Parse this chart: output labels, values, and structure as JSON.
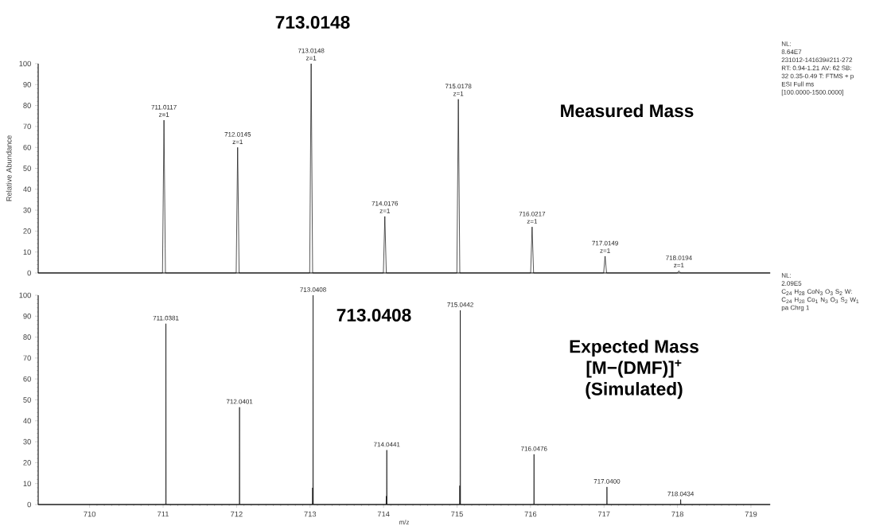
{
  "chart_data": [
    {
      "type": "line",
      "title": "713.0148",
      "ylabel": "Relative Abundance",
      "color": "#000000",
      "x": [
        709.3,
        710.9917,
        711.0117,
        711.0317,
        711.9945,
        712.0145,
        712.0345,
        712.9948,
        713.0148,
        713.0348,
        713.9976,
        714.0176,
        714.0376,
        714.9978,
        715.0178,
        715.0378,
        716.0017,
        716.0217,
        716.0417,
        716.9949,
        717.0149,
        717.0349,
        717.9994,
        718.0194,
        718.0394,
        719.26
      ],
      "values": [
        0,
        0,
        73,
        0,
        0,
        60,
        0,
        0,
        100,
        0,
        0,
        27,
        0,
        0,
        83,
        0,
        0,
        22,
        0,
        0,
        8,
        0,
        0,
        1,
        0,
        0
      ],
      "xlim": [
        709.3,
        719.26
      ],
      "ylim": [
        0,
        100
      ],
      "yticks": [
        0,
        10,
        20,
        30,
        40,
        50,
        60,
        70,
        80,
        90,
        100
      ],
      "tick_labels": "y",
      "annotations": [
        "Measured Mass",
        "NL:",
        "8.64E7",
        "231012-141639#211-272",
        "RT: 0.94-1.21  AV: 62 SB:",
        "32  0.35-0.49 T: FTMS + p",
        "ESI Full ms",
        "[100.0000-1500.0000]",
        {
          "text": "711.0117 z=1",
          "x": 711.0117,
          "y": 73
        },
        {
          "text": "712.0145 z=1",
          "x": 712.0145,
          "y": 60
        },
        {
          "text": "713.0148 z=1",
          "x": 713.0148,
          "y": 100
        },
        {
          "text": "714.0176 z=1",
          "x": 714.0176,
          "y": 27
        },
        {
          "text": "715.0178 z=1",
          "x": 715.0178,
          "y": 83
        },
        {
          "text": "716.0217 z=1",
          "x": 716.0217,
          "y": 22
        },
        {
          "text": "717.0149 z=1",
          "x": 717.0149,
          "y": 8
        },
        {
          "text": "718.0194 z=1",
          "x": 718.0194,
          "y": 1
        }
      ]
    },
    {
      "type": "line",
      "xlabel": "m/z",
      "color": "#000000",
      "x": [
        709.3,
        711.0351,
        711.0381,
        711.0411,
        712.0371,
        712.0401,
        712.0431,
        713.0315,
        713.0345,
        713.0375,
        713.0378,
        713.0408,
        713.0438,
        714.0345,
        714.0375,
        714.0405,
        714.0411,
        714.0441,
        714.0471,
        715.0345,
        715.0375,
        715.0405,
        715.0412,
        715.0442,
        715.0472,
        716.0446,
        716.0476,
        716.0506,
        717.037,
        717.04,
        717.043,
        718.0404,
        718.0434,
        718.0464,
        719.26
      ],
      "values": [
        0,
        0,
        86.4,
        0,
        0,
        46.5,
        0,
        0,
        8,
        0,
        0,
        100,
        0,
        0,
        4,
        0,
        0,
        26,
        0,
        0,
        9,
        0,
        0,
        92.8,
        0,
        0,
        24,
        0,
        0,
        8.4,
        0,
        0,
        2.4,
        0,
        0
      ],
      "xlim": [
        709.3,
        719.26
      ],
      "ylim": [
        0,
        100
      ],
      "xticks": [
        710,
        711,
        712,
        713,
        714,
        715,
        716,
        717,
        718,
        719
      ],
      "yticks": [
        0,
        10,
        20,
        30,
        40,
        50,
        60,
        70,
        80,
        90,
        100
      ],
      "annotations": [
        "713.0408",
        "Expected Mass",
        "[M−(DMF)]$^{+}$",
        "(Simulated)",
        "NL:",
        "2.09E5",
        "C$_{24}$ H$_{28}$ CoN$_{3}$ O$_{3}$ S$_{2}$ W:",
        "C$_{24}$ H$_{28}$ Co$_{1}$ N$_{3}$ O$_{3}$ S$_{2}$ W$_{1}$",
        "pa Chrg 1",
        {
          "text": "711.0381",
          "x": 711.0381,
          "y": 86.4
        },
        {
          "text": "712.0401",
          "x": 712.0401,
          "y": 46.5
        },
        {
          "text": "713.0408",
          "x": 713.0408,
          "y": 100
        },
        {
          "text": "714.0441",
          "x": 714.0441,
          "y": 26
        },
        {
          "text": "715.0442",
          "x": 715.0442,
          "y": 92.8
        },
        {
          "text": "716.0476",
          "x": 716.0476,
          "y": 24
        },
        {
          "text": "717.0400",
          "x": 717.04,
          "y": 8.4
        },
        {
          "text": "718.0434",
          "x": 718.0434,
          "y": 2.4
        }
      ]
    }
  ]
}
